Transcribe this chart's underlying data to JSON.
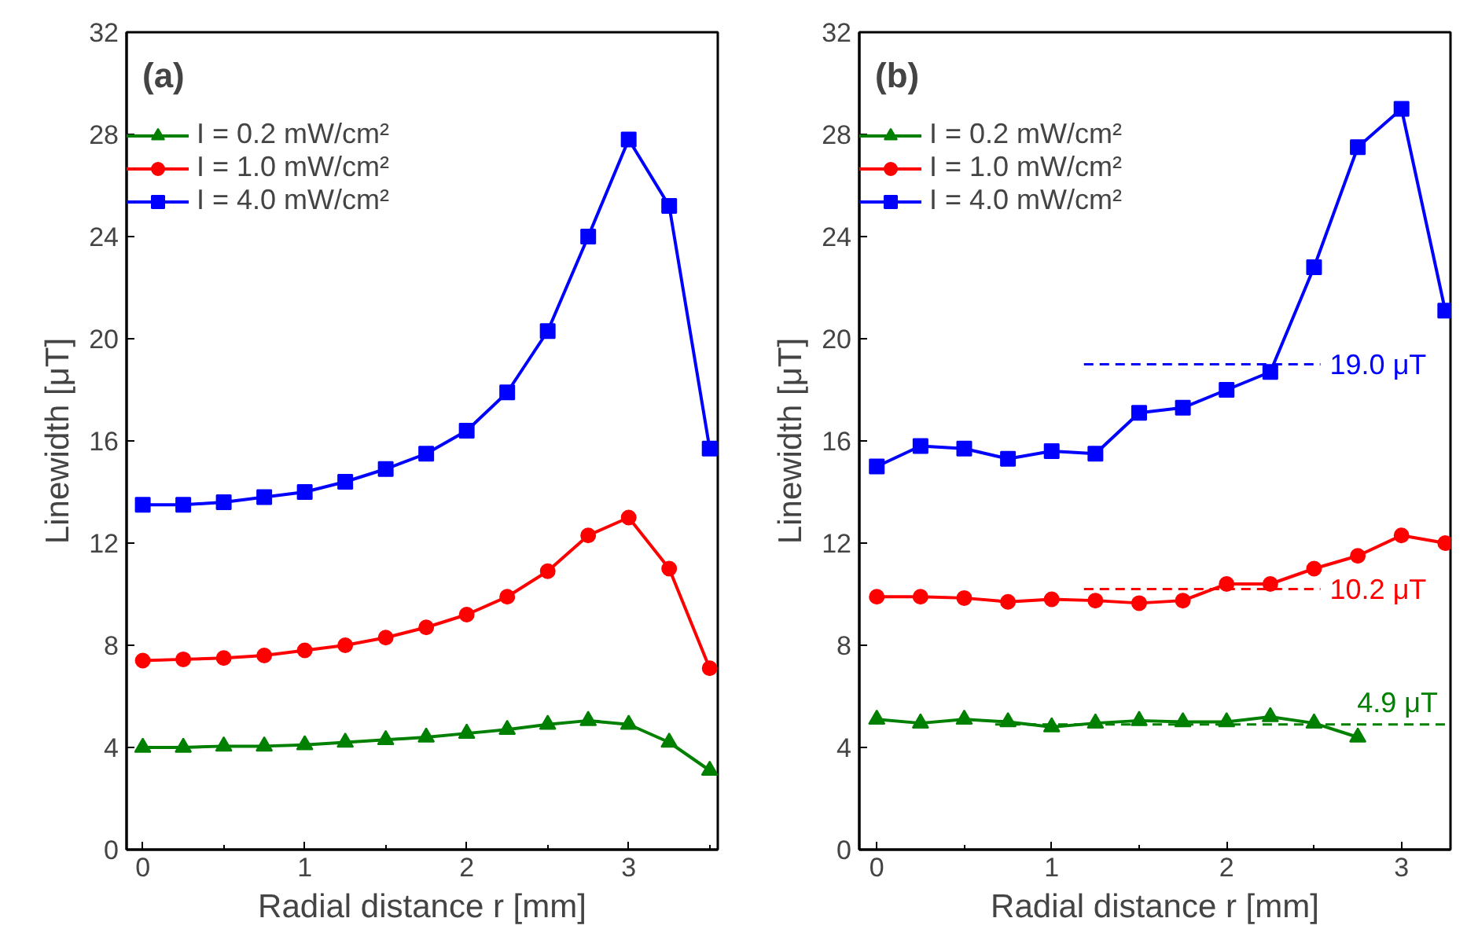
{
  "chart_data": [
    {
      "type": "line",
      "title": "(a)",
      "xlabel": "Radial distance r [mm]",
      "ylabel": "Linewidth [μT]",
      "x": [
        0,
        0.25,
        0.5,
        0.75,
        1,
        1.25,
        1.5,
        1.75,
        2,
        2.25,
        2.5,
        2.75,
        3,
        3.25,
        3.5
      ],
      "xlim": [
        -0.1,
        3.55
      ],
      "xticks": [
        0,
        1,
        2,
        3
      ],
      "ylim": [
        0,
        32
      ],
      "yticks": [
        0,
        4,
        8,
        12,
        16,
        20,
        24,
        28,
        32
      ],
      "grid": false,
      "legend": "top left",
      "series": [
        {
          "name": "I = 0.2 mW/cm²",
          "color": "#008000",
          "marker": "triangle",
          "values": [
            4.0,
            4.0,
            4.05,
            4.05,
            4.1,
            4.2,
            4.3,
            4.4,
            4.55,
            4.7,
            4.9,
            5.05,
            4.9,
            4.2,
            3.1
          ]
        },
        {
          "name": "I = 1.0 mW/cm²",
          "color": "#ff0000",
          "marker": "circle",
          "values": [
            7.4,
            7.45,
            7.5,
            7.6,
            7.8,
            8.0,
            8.3,
            8.7,
            9.2,
            9.9,
            10.9,
            12.3,
            13.0,
            11.0,
            7.1
          ]
        },
        {
          "name": "I = 4.0 mW/cm²",
          "color": "#0000ff",
          "marker": "square",
          "values": [
            13.5,
            13.5,
            13.6,
            13.8,
            14.0,
            14.4,
            14.9,
            15.5,
            16.4,
            17.9,
            20.3,
            24.0,
            27.8,
            25.2,
            15.7
          ]
        }
      ]
    },
    {
      "type": "line",
      "title": "(b)",
      "xlabel": "Radial distance r [mm]",
      "ylabel": "Linewidth [μT]",
      "x": [
        0,
        0.25,
        0.5,
        0.75,
        1,
        1.25,
        1.5,
        1.75,
        2,
        2.25,
        2.5,
        2.75,
        3,
        3.25
      ],
      "xlim": [
        -0.1,
        3.28
      ],
      "xticks": [
        0,
        1,
        2,
        3
      ],
      "ylim": [
        0,
        32
      ],
      "yticks": [
        0,
        4,
        8,
        12,
        16,
        20,
        24,
        28,
        32
      ],
      "grid": false,
      "legend": "top left",
      "series": [
        {
          "name": "I = 0.2 mW/cm²",
          "color": "#008000",
          "marker": "triangle",
          "values": [
            5.1,
            4.95,
            5.1,
            5.0,
            4.8,
            4.95,
            5.05,
            5.0,
            5.0,
            5.2,
            4.95,
            4.4,
            null,
            null
          ]
        },
        {
          "name": "I = 1.0 mW/cm²",
          "color": "#ff0000",
          "marker": "circle",
          "values": [
            9.9,
            9.9,
            9.85,
            9.7,
            9.8,
            9.75,
            9.65,
            9.75,
            10.4,
            10.4,
            11.0,
            11.5,
            12.3,
            12.0
          ]
        },
        {
          "name": "I = 4.0 mW/cm²",
          "color": "#0000ff",
          "marker": "square",
          "values": [
            15.0,
            15.8,
            15.7,
            15.3,
            15.6,
            15.5,
            17.1,
            17.3,
            18.0,
            18.7,
            22.8,
            27.5,
            29.0,
            21.1
          ]
        }
      ],
      "ref_lines": [
        {
          "axis": "y",
          "value": 19.0,
          "label": "19.0 μT",
          "color": "#0000ff",
          "line_style": "dashed"
        },
        {
          "axis": "y",
          "value": 10.2,
          "label": "10.2 μT",
          "color": "#ff0000",
          "line_style": "dashed"
        },
        {
          "axis": "y",
          "value": 4.9,
          "label": "4.9 μT",
          "color": "#008000",
          "line_style": "dashed"
        }
      ]
    }
  ]
}
